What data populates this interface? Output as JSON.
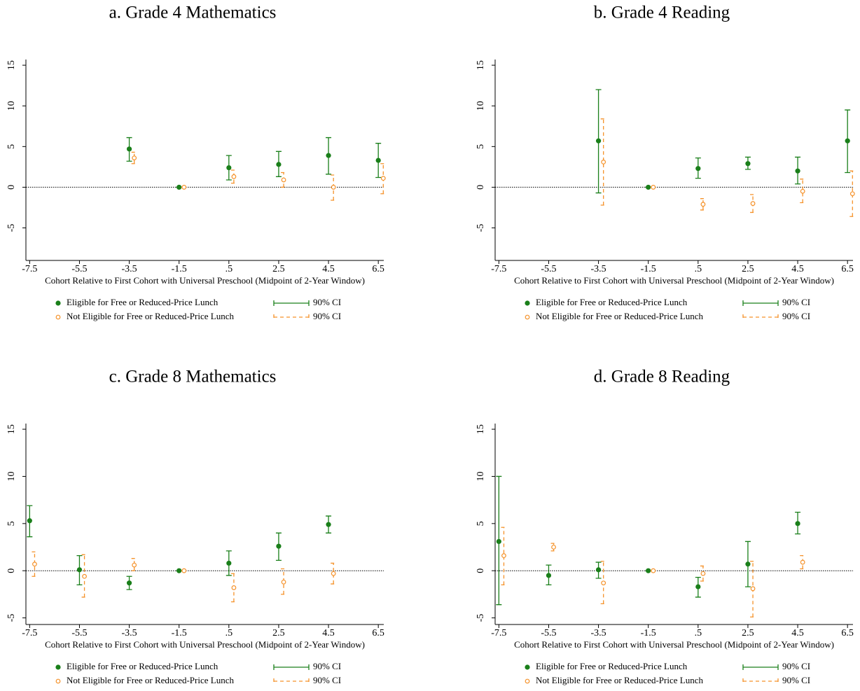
{
  "chart_data": [
    {
      "type": "errorbar",
      "title": "a. Grade 4 Mathematics",
      "xlabel": "Cohort Relative to First Cohort with Universal Preschool (Midpoint of 2-Year Window)",
      "xlim": [
        -7.65,
        6.72
      ],
      "ylim": [
        -9,
        15.7
      ],
      "xticks": [
        -7.5,
        -5.5,
        -3.5,
        -1.5,
        {
          "value": 0.5,
          "label": ".5"
        },
        2.5,
        4.5,
        6.5
      ],
      "yticks": [
        -5,
        0,
        5,
        10,
        15
      ],
      "reference_line": 0,
      "series": [
        {
          "name": "Eligible for Free or Reduced-Price Lunch",
          "ci_label": "90% CI",
          "color": "#1a7f1a",
          "marker": "filled",
          "ci_style": "solid",
          "x": [
            -3.5,
            -1.5,
            0.5,
            2.5,
            4.5,
            6.5
          ],
          "values": [
            4.7,
            0,
            2.4,
            2.8,
            3.9,
            3.3
          ],
          "lower": [
            3.2,
            0,
            0.9,
            1.3,
            1.6,
            1.2
          ],
          "upper": [
            6.1,
            0,
            3.9,
            4.4,
            6.1,
            5.4
          ]
        },
        {
          "name": "Not Eligible for Free or Reduced-Price Lunch",
          "ci_label": "90% CI",
          "color": "#f5922a",
          "marker": "hollow",
          "ci_style": "dashed",
          "x": [
            -3.3,
            -1.3,
            0.7,
            2.7,
            4.7,
            6.7
          ],
          "values": [
            3.6,
            0,
            1.3,
            0.9,
            0,
            1.1
          ],
          "lower": [
            2.9,
            0,
            0.5,
            0,
            -1.6,
            -0.8
          ],
          "upper": [
            4.3,
            0,
            2.1,
            1.8,
            1.5,
            2.9
          ]
        }
      ]
    },
    {
      "type": "errorbar",
      "title": "b. Grade 4 Reading",
      "xlabel": "Cohort Relative to First Cohort with Universal Preschool (Midpoint of 2-Year Window)",
      "xlim": [
        -7.65,
        6.72
      ],
      "ylim": [
        -9,
        15.7
      ],
      "xticks": [
        -7.5,
        -5.5,
        -3.5,
        -1.5,
        {
          "value": 0.5,
          "label": ".5"
        },
        2.5,
        4.5,
        6.5
      ],
      "yticks": [
        -5,
        0,
        5,
        10,
        15
      ],
      "reference_line": 0,
      "series": [
        {
          "name": "Eligible for Free or Reduced-Price Lunch",
          "ci_label": "90% CI",
          "color": "#1a7f1a",
          "marker": "filled",
          "ci_style": "solid",
          "x": [
            -3.5,
            -1.5,
            0.5,
            2.5,
            4.5,
            6.5
          ],
          "values": [
            5.7,
            0,
            2.3,
            2.9,
            2.0,
            5.7
          ],
          "lower": [
            -0.7,
            0,
            1.1,
            2.2,
            0.4,
            1.8
          ],
          "upper": [
            12,
            0,
            3.6,
            3.7,
            3.7,
            9.5
          ]
        },
        {
          "name": "Not Eligible for Free or Reduced-Price Lunch",
          "ci_label": "90% CI",
          "color": "#f5922a",
          "marker": "hollow",
          "ci_style": "dashed",
          "x": [
            -3.3,
            -1.3,
            0.7,
            2.7,
            4.7,
            6.7
          ],
          "values": [
            3.1,
            0,
            -2.1,
            -2.0,
            -0.5,
            -0.8
          ],
          "lower": [
            -2.2,
            0,
            -2.8,
            -3.1,
            -1.9,
            -3.6
          ],
          "upper": [
            8.4,
            0,
            -1.4,
            -0.9,
            1.0,
            2.0
          ]
        }
      ]
    },
    {
      "type": "errorbar",
      "title": "c. Grade 8 Mathematics",
      "xlabel": "Cohort Relative to First Cohort with Universal Preschool (Midpoint of 2-Year Window)",
      "xlim": [
        -7.65,
        6.72
      ],
      "ylim": [
        -5.7,
        15.6
      ],
      "xticks": [
        -7.5,
        -5.5,
        -3.5,
        -1.5,
        {
          "value": 0.5,
          "label": ".5"
        },
        2.5,
        4.5,
        6.5
      ],
      "yticks": [
        -5,
        0,
        5,
        10,
        15
      ],
      "reference_line": 0,
      "series": [
        {
          "name": "Eligible for Free or Reduced-Price Lunch",
          "ci_label": "90% CI",
          "color": "#1a7f1a",
          "marker": "filled",
          "ci_style": "solid",
          "x": [
            -7.5,
            -5.5,
            -3.5,
            -1.5,
            0.5,
            2.5,
            4.5
          ],
          "values": [
            5.3,
            0.1,
            -1.3,
            0,
            0.8,
            2.6,
            4.9
          ],
          "lower": [
            3.6,
            -1.5,
            -2.0,
            0,
            -0.5,
            1.1,
            4.0
          ],
          "upper": [
            6.9,
            1.6,
            -0.6,
            0,
            2.1,
            4.0,
            5.8
          ]
        },
        {
          "name": "Not Eligible for Free or Reduced-Price Lunch",
          "ci_label": "90% CI",
          "color": "#f5922a",
          "marker": "hollow",
          "ci_style": "dashed",
          "x": [
            -7.3,
            -5.3,
            -3.3,
            -1.3,
            0.7,
            2.7,
            4.7
          ],
          "values": [
            0.7,
            -0.6,
            0.6,
            0,
            -1.8,
            -1.2,
            -0.3
          ],
          "lower": [
            -0.6,
            -2.8,
            0,
            0,
            -3.3,
            -2.5,
            -1.4
          ],
          "upper": [
            2.0,
            1.7,
            1.3,
            0,
            -0.3,
            0.2,
            0.8
          ]
        }
      ]
    },
    {
      "type": "errorbar",
      "title": "d. Grade 8 Reading",
      "xlabel": "Cohort Relative to First Cohort with Universal Preschool (Midpoint of 2-Year Window)",
      "xlim": [
        -7.65,
        6.72
      ],
      "ylim": [
        -5.7,
        15.6
      ],
      "xticks": [
        -7.5,
        -5.5,
        -3.5,
        -1.5,
        {
          "value": 0.5,
          "label": ".5"
        },
        2.5,
        4.5,
        6.5
      ],
      "yticks": [
        -5,
        0,
        5,
        10,
        15
      ],
      "reference_line": 0,
      "series": [
        {
          "name": "Eligible for Free or Reduced-Price Lunch",
          "ci_label": "90% CI",
          "color": "#1a7f1a",
          "marker": "filled",
          "ci_style": "solid",
          "x": [
            -7.5,
            -5.5,
            -3.5,
            -1.5,
            0.5,
            2.5,
            4.5
          ],
          "values": [
            3.1,
            -0.5,
            0.1,
            0,
            -1.7,
            0.7,
            5.0
          ],
          "lower": [
            -3.6,
            -1.5,
            -0.8,
            0,
            -2.8,
            -1.7,
            3.9
          ],
          "upper": [
            10,
            0.6,
            0.9,
            0,
            -0.7,
            3.1,
            6.2
          ]
        },
        {
          "name": "Not Eligible for Free or Reduced-Price Lunch",
          "ci_label": "90% CI",
          "color": "#f5922a",
          "marker": "hollow",
          "ci_style": "dashed",
          "x": [
            -7.3,
            -5.3,
            -3.3,
            -1.3,
            0.7,
            2.7,
            4.7
          ],
          "values": [
            1.6,
            2.5,
            -1.3,
            0,
            -0.3,
            -1.9,
            0.9
          ],
          "lower": [
            -1.5,
            2.1,
            -3.5,
            0,
            -1.1,
            -4.9,
            0.2
          ],
          "upper": [
            4.6,
            2.9,
            1.0,
            0,
            0.5,
            1.0,
            1.6
          ]
        }
      ]
    }
  ]
}
